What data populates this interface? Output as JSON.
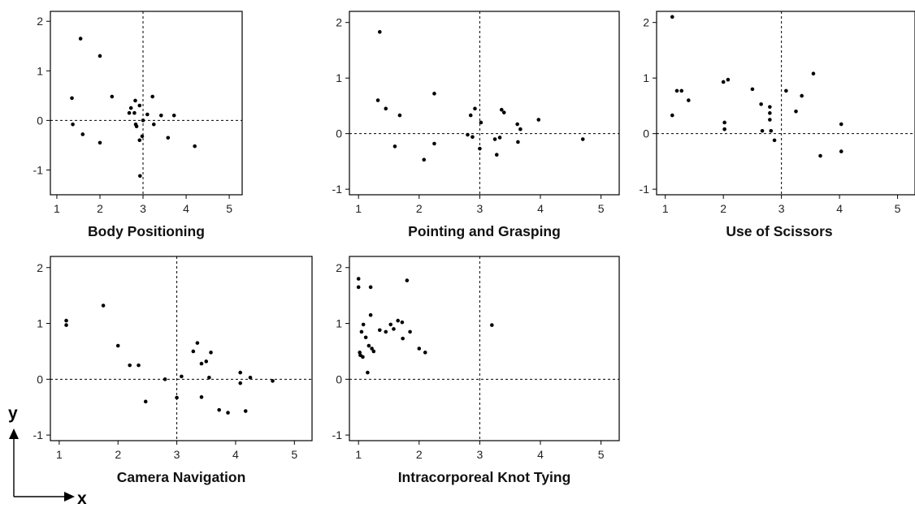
{
  "axes_legend": {
    "y_label": "y",
    "x_label": "x"
  },
  "chart_data": [
    {
      "type": "scatter",
      "title": "Body Positioning",
      "xlabel": "",
      "ylabel": "",
      "xlim": [
        0.85,
        5.3
      ],
      "ylim": [
        -1.5,
        2.2
      ],
      "xticks": [
        1,
        2,
        3,
        4,
        5
      ],
      "yticks": [
        -1,
        0,
        1,
        2
      ],
      "reference_lines": {
        "x": 3,
        "y": 0
      },
      "points": [
        [
          1.35,
          0.45
        ],
        [
          1.37,
          -0.08
        ],
        [
          1.55,
          1.65
        ],
        [
          1.6,
          -0.28
        ],
        [
          2.0,
          1.3
        ],
        [
          2.0,
          -0.45
        ],
        [
          2.28,
          0.48
        ],
        [
          2.68,
          0.15
        ],
        [
          2.72,
          0.25
        ],
        [
          2.8,
          0.15
        ],
        [
          2.82,
          0.4
        ],
        [
          2.83,
          -0.08
        ],
        [
          2.85,
          -0.12
        ],
        [
          2.92,
          0.3
        ],
        [
          2.92,
          -0.4
        ],
        [
          2.93,
          -1.12
        ],
        [
          2.98,
          -0.32
        ],
        [
          3.0,
          0.0
        ],
        [
          3.1,
          0.12
        ],
        [
          3.22,
          0.48
        ],
        [
          3.25,
          -0.08
        ],
        [
          3.42,
          0.1
        ],
        [
          3.58,
          -0.35
        ],
        [
          3.72,
          0.1
        ],
        [
          4.2,
          -0.52
        ]
      ]
    },
    {
      "type": "scatter",
      "title": "Pointing and Grasping",
      "xlabel": "",
      "ylabel": "",
      "xlim": [
        0.85,
        5.3
      ],
      "ylim": [
        -1.1,
        2.2
      ],
      "xticks": [
        1,
        2,
        3,
        4,
        5
      ],
      "yticks": [
        -1,
        0,
        1,
        2
      ],
      "reference_lines": {
        "x": 3,
        "y": 0
      },
      "points": [
        [
          1.32,
          0.6
        ],
        [
          1.35,
          1.83
        ],
        [
          1.45,
          0.45
        ],
        [
          1.6,
          -0.23
        ],
        [
          1.68,
          0.33
        ],
        [
          2.08,
          -0.47
        ],
        [
          2.25,
          0.72
        ],
        [
          2.25,
          -0.18
        ],
        [
          2.8,
          -0.02
        ],
        [
          2.85,
          0.33
        ],
        [
          2.88,
          -0.06
        ],
        [
          2.92,
          0.45
        ],
        [
          3.0,
          -0.27
        ],
        [
          3.02,
          0.2
        ],
        [
          3.25,
          -0.1
        ],
        [
          3.28,
          -0.38
        ],
        [
          3.33,
          -0.07
        ],
        [
          3.36,
          0.43
        ],
        [
          3.4,
          0.38
        ],
        [
          3.62,
          0.17
        ],
        [
          3.63,
          -0.15
        ],
        [
          3.67,
          0.08
        ],
        [
          3.97,
          0.25
        ],
        [
          4.7,
          -0.1
        ]
      ]
    },
    {
      "type": "scatter",
      "title": "Use of Scissors",
      "xlabel": "",
      "ylabel": "",
      "xlim": [
        0.85,
        5.3
      ],
      "ylim": [
        -1.1,
        2.2
      ],
      "xticks": [
        1,
        2,
        3,
        4,
        5
      ],
      "yticks": [
        -1,
        0,
        1,
        2
      ],
      "reference_lines": {
        "x": 3,
        "y": 0
      },
      "points": [
        [
          1.12,
          2.1
        ],
        [
          1.12,
          0.33
        ],
        [
          1.2,
          0.77
        ],
        [
          1.28,
          0.77
        ],
        [
          1.4,
          0.6
        ],
        [
          2.0,
          0.93
        ],
        [
          2.02,
          0.2
        ],
        [
          2.02,
          0.08
        ],
        [
          2.08,
          0.97
        ],
        [
          2.5,
          0.8
        ],
        [
          2.65,
          0.53
        ],
        [
          2.67,
          0.05
        ],
        [
          2.8,
          0.48
        ],
        [
          2.8,
          0.37
        ],
        [
          2.8,
          0.25
        ],
        [
          2.82,
          0.05
        ],
        [
          2.88,
          -0.12
        ],
        [
          3.08,
          0.77
        ],
        [
          3.25,
          0.4
        ],
        [
          3.35,
          0.68
        ],
        [
          3.55,
          1.08
        ],
        [
          3.67,
          -0.4
        ],
        [
          4.03,
          0.17
        ],
        [
          4.03,
          -0.32
        ]
      ]
    },
    {
      "type": "scatter",
      "title": "Camera Navigation",
      "xlabel": "",
      "ylabel": "",
      "xlim": [
        0.85,
        5.3
      ],
      "ylim": [
        -1.1,
        2.2
      ],
      "xticks": [
        1,
        2,
        3,
        4,
        5
      ],
      "yticks": [
        -1,
        0,
        1,
        2
      ],
      "reference_lines": {
        "x": 3,
        "y": 0
      },
      "points": [
        [
          1.12,
          1.05
        ],
        [
          1.12,
          0.97
        ],
        [
          1.75,
          1.32
        ],
        [
          2.0,
          0.6
        ],
        [
          2.2,
          0.25
        ],
        [
          2.35,
          0.25
        ],
        [
          2.47,
          -0.4
        ],
        [
          2.8,
          0.0
        ],
        [
          3.0,
          -0.33
        ],
        [
          3.08,
          0.05
        ],
        [
          3.28,
          0.5
        ],
        [
          3.35,
          0.65
        ],
        [
          3.42,
          0.28
        ],
        [
          3.42,
          -0.32
        ],
        [
          3.5,
          0.32
        ],
        [
          3.55,
          0.03
        ],
        [
          3.58,
          0.48
        ],
        [
          3.72,
          -0.55
        ],
        [
          3.87,
          -0.6
        ],
        [
          4.08,
          0.12
        ],
        [
          4.08,
          -0.07
        ],
        [
          4.17,
          -0.57
        ],
        [
          4.25,
          0.03
        ],
        [
          4.63,
          -0.03
        ]
      ]
    },
    {
      "type": "scatter",
      "title": "Intracorporeal Knot Tying",
      "xlabel": "",
      "ylabel": "",
      "xlim": [
        0.85,
        5.3
      ],
      "ylim": [
        -1.1,
        2.2
      ],
      "xticks": [
        1,
        2,
        3,
        4,
        5
      ],
      "yticks": [
        -1,
        0,
        1,
        2
      ],
      "reference_lines": {
        "x": 3,
        "y": 0
      },
      "points": [
        [
          1.0,
          1.8
        ],
        [
          1.0,
          1.65
        ],
        [
          1.02,
          0.48
        ],
        [
          1.03,
          0.43
        ],
        [
          1.05,
          0.85
        ],
        [
          1.07,
          0.4
        ],
        [
          1.08,
          0.98
        ],
        [
          1.12,
          0.75
        ],
        [
          1.15,
          0.12
        ],
        [
          1.17,
          0.6
        ],
        [
          1.2,
          1.65
        ],
        [
          1.2,
          1.15
        ],
        [
          1.22,
          0.55
        ],
        [
          1.25,
          0.5
        ],
        [
          1.35,
          0.88
        ],
        [
          1.45,
          0.85
        ],
        [
          1.53,
          0.98
        ],
        [
          1.58,
          0.9
        ],
        [
          1.65,
          1.05
        ],
        [
          1.72,
          1.02
        ],
        [
          1.73,
          0.73
        ],
        [
          1.8,
          1.77
        ],
        [
          1.85,
          0.85
        ],
        [
          2.0,
          0.55
        ],
        [
          2.1,
          0.48
        ],
        [
          3.2,
          0.97
        ]
      ]
    }
  ]
}
